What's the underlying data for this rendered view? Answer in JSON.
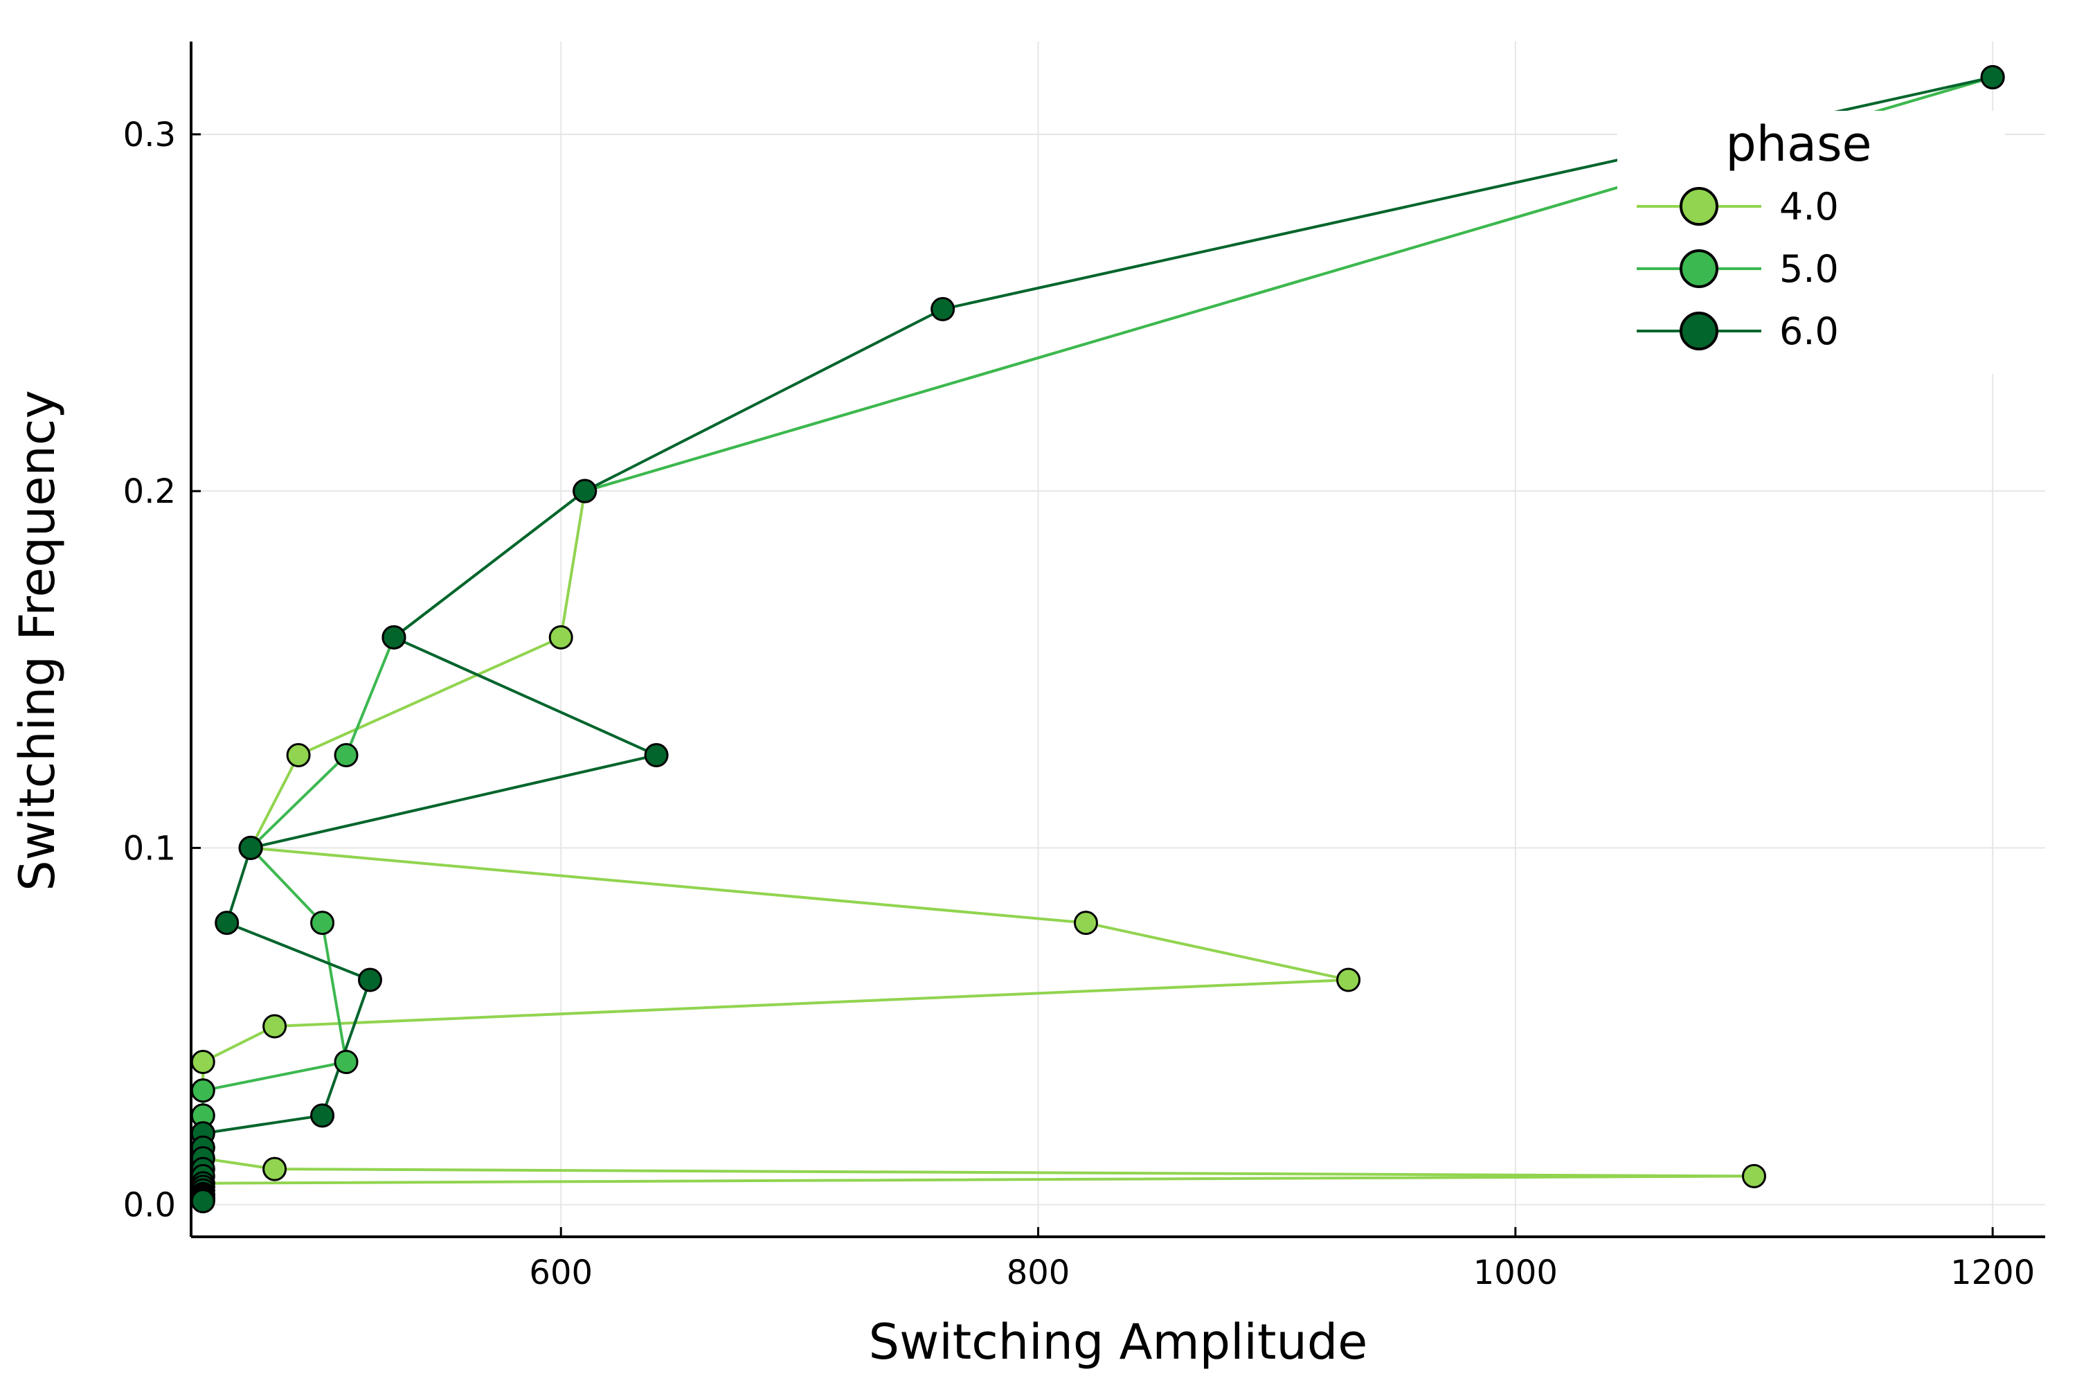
{
  "chart_data": {
    "type": "line",
    "xlabel": "Switching Amplitude",
    "ylabel": "Switching Frequency",
    "xlim": [
      445,
      1222
    ],
    "ylim": [
      -0.009,
      0.326
    ],
    "xticks": [
      600,
      800,
      1000,
      1200
    ],
    "xtick_labels": [
      "600",
      "800",
      "1000",
      "1200"
    ],
    "yticks": [
      0.0,
      0.1,
      0.2,
      0.3
    ],
    "ytick_labels": [
      "0.0",
      "0.1",
      "0.2",
      "0.3"
    ],
    "grid": true,
    "legend_title": "phase",
    "legend_position": "top-right",
    "series": [
      {
        "name": "4.0",
        "color": "#91d44f",
        "points": [
          [
            1200,
            0.316
          ],
          [
            610,
            0.2
          ],
          [
            600,
            0.159
          ],
          [
            490,
            0.126
          ],
          [
            470,
            0.1
          ],
          [
            820,
            0.079
          ],
          [
            930,
            0.063
          ],
          [
            480,
            0.05
          ],
          [
            450,
            0.04
          ],
          [
            450,
            0.032
          ],
          [
            450,
            0.025
          ],
          [
            450,
            0.02
          ],
          [
            450,
            0.016
          ],
          [
            450,
            0.013
          ],
          [
            480,
            0.01
          ],
          [
            1100,
            0.008
          ],
          [
            450,
            0.006
          ],
          [
            450,
            0.005
          ],
          [
            450,
            0.004
          ],
          [
            450,
            0.003
          ],
          [
            450,
            0.0025
          ],
          [
            450,
            0.002
          ],
          [
            450,
            0.0016
          ],
          [
            450,
            0.0013
          ],
          [
            450,
            0.001
          ]
        ]
      },
      {
        "name": "5.0",
        "color": "#3cb850",
        "points": [
          [
            1200,
            0.316
          ],
          [
            610,
            0.2
          ],
          [
            530,
            0.159
          ],
          [
            510,
            0.126
          ],
          [
            470,
            0.1
          ],
          [
            500,
            0.079
          ],
          [
            510,
            0.04
          ],
          [
            450,
            0.032
          ],
          [
            450,
            0.025
          ],
          [
            450,
            0.02
          ],
          [
            450,
            0.016
          ],
          [
            450,
            0.013
          ],
          [
            450,
            0.01
          ],
          [
            450,
            0.008
          ],
          [
            450,
            0.006
          ],
          [
            450,
            0.005
          ],
          [
            450,
            0.004
          ],
          [
            450,
            0.003
          ],
          [
            450,
            0.0025
          ],
          [
            450,
            0.002
          ],
          [
            450,
            0.0016
          ],
          [
            450,
            0.0013
          ],
          [
            450,
            0.001
          ]
        ]
      },
      {
        "name": "6.0",
        "color": "#02652c",
        "points": [
          [
            1200,
            0.316
          ],
          [
            760,
            0.251
          ],
          [
            610,
            0.2
          ],
          [
            530,
            0.159
          ],
          [
            640,
            0.126
          ],
          [
            470,
            0.1
          ],
          [
            460,
            0.079
          ],
          [
            520,
            0.063
          ],
          [
            500,
            0.025
          ],
          [
            450,
            0.02
          ],
          [
            450,
            0.016
          ],
          [
            450,
            0.013
          ],
          [
            450,
            0.01
          ],
          [
            450,
            0.008
          ],
          [
            450,
            0.006
          ],
          [
            450,
            0.005
          ],
          [
            450,
            0.004
          ],
          [
            450,
            0.003
          ],
          [
            450,
            0.0025
          ],
          [
            450,
            0.002
          ],
          [
            450,
            0.0016
          ],
          [
            450,
            0.0013
          ],
          [
            450,
            0.001
          ]
        ]
      }
    ]
  }
}
